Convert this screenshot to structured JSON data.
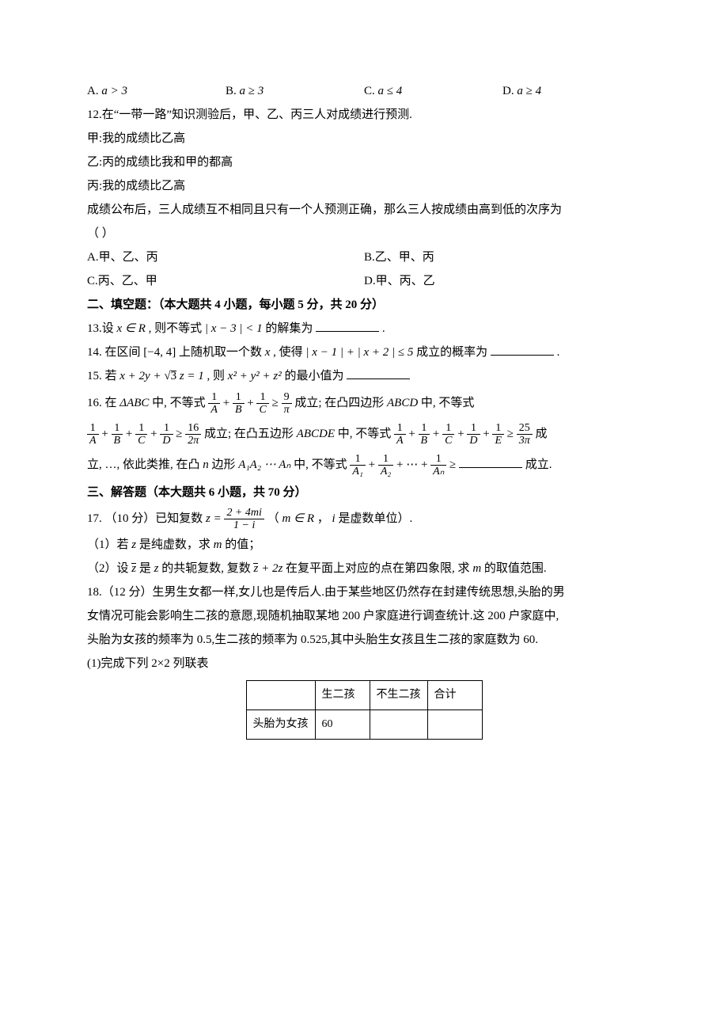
{
  "q11_options": {
    "a_label": "A.",
    "a_text": "a > 3",
    "b_label": "B.",
    "b_text": "a ≥ 3",
    "c_label": "C.",
    "c_text": "a ≤ 4",
    "d_label": "D.",
    "d_text": "a ≥ 4"
  },
  "q12": {
    "stem": "12.在“一带一路”知识测验后，甲、乙、丙三人对成绩进行预测.",
    "line_jia": "甲:我的成绩比乙高",
    "line_yi": "乙:丙的成绩比我和甲的都高",
    "line_bing": "丙:我的成绩比乙高",
    "result": "成绩公布后，三人成绩互不相同且只有一个人预测正确，那么三人按成绩由高到低的次序为",
    "paren": "（    ）",
    "opts": {
      "a": "A.甲、乙、丙",
      "b": "B.乙、甲、丙",
      "c": "C.丙、乙、甲",
      "d": "D.甲、丙、乙"
    }
  },
  "section2": "二、填空题：（本大题共 4 小题，每小题 5 分，共 20 分）",
  "q13": {
    "prefix": "13.设",
    "xr": "x ∈ R",
    "mid": " , 则不等式",
    "ineq": "| x − 3 | < 1",
    "suffix": "的解集为",
    "end": "."
  },
  "q14": {
    "prefix": "14. 在区间",
    "interval": "[−4, 4]",
    "mid1": "上随机取一个数",
    "var": " x ",
    "mid2": ", 使得",
    "ineq": "| x − 1 | + | x + 2 | ≤ 5",
    "suffix": "成立的概率为",
    "end": "."
  },
  "q15": {
    "prefix": "15. 若 ",
    "eq_lhs_a": "x + 2y + ",
    "sqrt3": "3",
    "eq_lhs_b": " z = 1",
    "mid": " , 则 ",
    "rhs": "x² + y² + z²",
    "suffix": " 的最小值为"
  },
  "q16": {
    "l1a": "16. 在 ",
    "tri": "ΔABC",
    "l1b": " 中, 不等式 ",
    "f1": {
      "n": "1",
      "d": "A"
    },
    "plus": " + ",
    "f2": {
      "n": "1",
      "d": "B"
    },
    "f3": {
      "n": "1",
      "d": "C"
    },
    "ge": " ≥ ",
    "f9pi": {
      "n": "9",
      "d": "π"
    },
    "l1c": " 成立; 在凸四边形 ",
    "quad": "ABCD",
    "l1d": " 中, 不等式",
    "fD": {
      "n": "1",
      "d": "D"
    },
    "f16": {
      "n": "16",
      "d": "2π"
    },
    "l2b": " 成立; 在凸五边形 ",
    "pent": "ABCDE",
    "l2c": " 中, 不等式 ",
    "fE": {
      "n": "1",
      "d": "E"
    },
    "f25": {
      "n": "25",
      "d": "3π"
    },
    "l2d": " 成",
    "l3a": "立, …, 依此类推, 在凸 ",
    "nvar": "n",
    "l3b": " 边形 ",
    "poly": "A₁A₂ ⋯ Aₙ",
    "l3c": " 中, 不等式 ",
    "fA1": {
      "n": "1",
      "d": "A₁"
    },
    "fA2": {
      "n": "1",
      "d": "A₂"
    },
    "dots": " + ⋯ + ",
    "fAn": {
      "n": "1",
      "d": "Aₙ"
    },
    "l3d": " 成立."
  },
  "section3": "三、解答题（本大题共 6 小题，共 70 分）",
  "q17": {
    "l1a": "17. （10 分）已知复数 ",
    "frac": {
      "n": "2 + 4mi",
      "d": "1 − i"
    },
    "zeq": "z = ",
    "l1b": " （",
    "mR": "m ∈ R",
    "comma": " ， ",
    "iunit": "i",
    "l1c": " 是虚数单位）.",
    "p1": "（1）若 ",
    "zvar": "z",
    "p1b": " 是纯虚数，求 ",
    "mvar": "m",
    "p1c": " 的值；",
    "p2a": "（2）设 ",
    "zbar": "z",
    "p2b": " 是 ",
    "p2c": " 的共轭复数, 复数 ",
    "expr": " + 2z",
    "p2d": " 在复平面上对应的点在第四象限, 求 ",
    "p2e": " 的取值范围."
  },
  "q18": {
    "l1": "18.（12 分）生男生女都一样,女儿也是传后人.由于某些地区仍然存在封建传统思想,头胎的男",
    "l2": "女情况可能会影响生二孩的意愿,现随机抽取某地 200 户家庭进行调查统计.这 200 户家庭中,",
    "l3": "头胎为女孩的频率为 0.5,生二孩的频率为 0.525,其中头胎生女孩且生二孩的家庭数为 60.",
    "p1": "(1)完成下列 2×2 列联表",
    "table": {
      "h1": "",
      "h2": "生二孩",
      "h3": "不生二孩",
      "h4": "合计",
      "r1c1": "头胎为女孩",
      "r1c2": "60",
      "r1c3": "",
      "r1c4": ""
    }
  }
}
